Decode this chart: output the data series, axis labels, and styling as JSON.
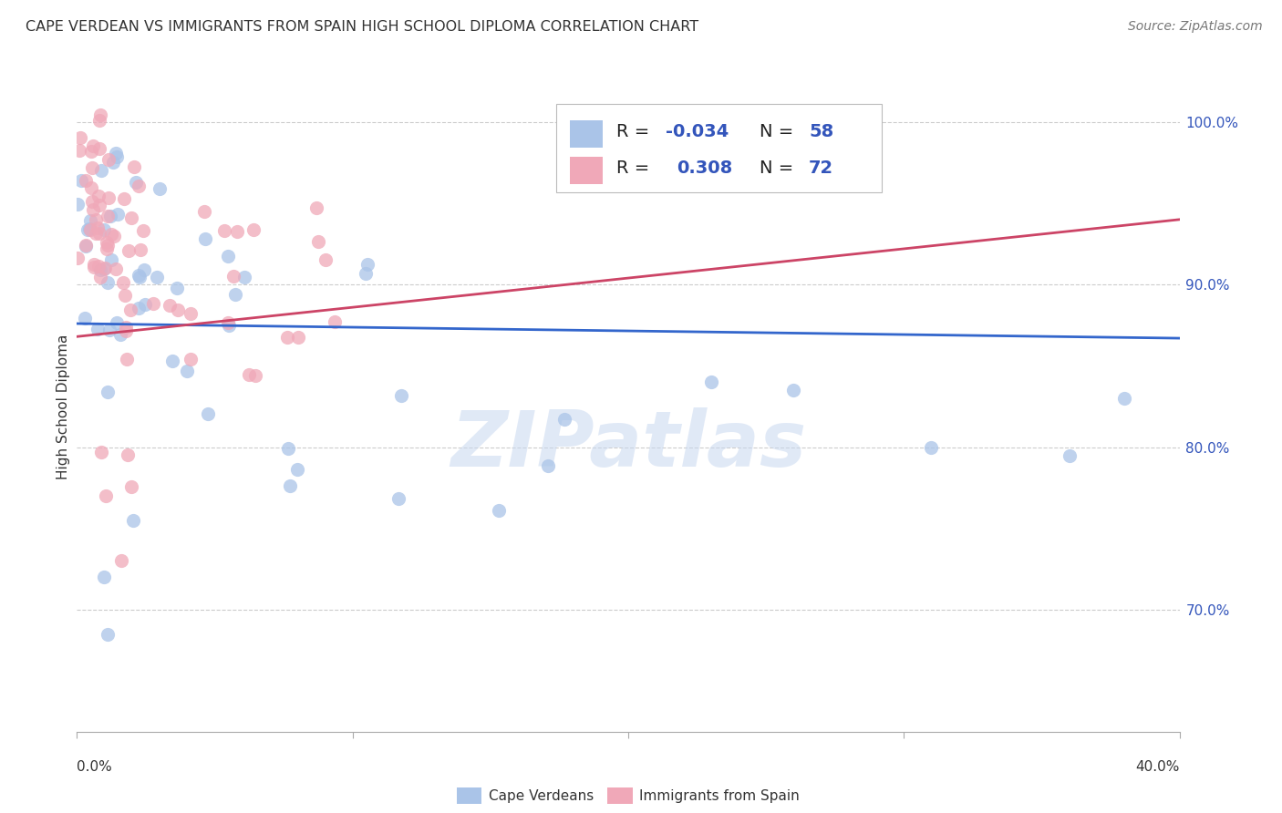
{
  "title": "CAPE VERDEAN VS IMMIGRANTS FROM SPAIN HIGH SCHOOL DIPLOMA CORRELATION CHART",
  "source": "Source: ZipAtlas.com",
  "ylabel": "High School Diploma",
  "blue_color": "#aac4e8",
  "pink_color": "#f0a8b8",
  "blue_line_color": "#3366cc",
  "pink_line_color": "#cc4466",
  "watermark": "ZIPatlas",
  "xlim": [
    0.0,
    0.4
  ],
  "ylim": [
    0.625,
    1.025
  ],
  "yticks": [
    1.0,
    0.9,
    0.8,
    0.7
  ],
  "ytick_labels": [
    "100.0%",
    "90.0%",
    "80.0%",
    "70.0%"
  ],
  "blue_trend_y0": 0.876,
  "blue_trend_y1": 0.867,
  "pink_trend_y0": 0.868,
  "pink_trend_y1": 0.94,
  "legend_r_black1": "R = ",
  "legend_r_val1": "-0.034",
  "legend_n_black1": "N = ",
  "legend_n_val1": "58",
  "legend_r_black2": "R =  ",
  "legend_r_val2": "0.308",
  "legend_n_black2": "N = ",
  "legend_n_val2": "72",
  "legend_text_color": "#3355bb",
  "dot_size": 120
}
